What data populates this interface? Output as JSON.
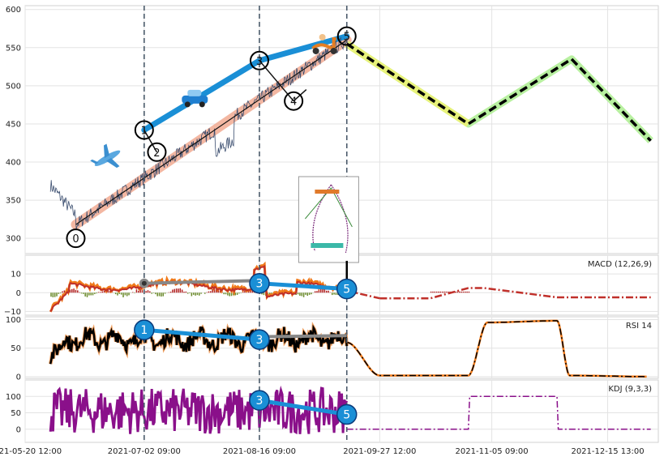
{
  "chart_data": [
    {
      "type": "line",
      "panel": "price",
      "ylim": [
        280,
        605
      ],
      "yticks": [
        "300",
        "350",
        "400",
        "450",
        "500",
        "550",
        "600"
      ],
      "ytick_values": [
        300,
        350,
        400,
        450,
        500,
        550,
        600
      ],
      "xlim": [
        0,
        1000
      ],
      "xtick_labels": [
        "2021-05-20 12:00",
        "2021-07-02 09:00",
        "2021-08-16 09:00",
        "2021-09-27 12:00",
        "2021-11-05 09:00",
        "2021-12-15 13:00"
      ],
      "xtick_positions": [
        0,
        188,
        370,
        560,
        737,
        920
      ],
      "vlines": [
        188,
        370,
        508
      ],
      "wave_points": [
        {
          "label": "0",
          "x": 80,
          "y": 300
        },
        {
          "label": "1",
          "x": 188,
          "y": 442
        },
        {
          "label": "2",
          "x": 208,
          "y": 413
        },
        {
          "label": "3",
          "x": 370,
          "y": 533
        },
        {
          "label": "4",
          "x": 424,
          "y": 480
        },
        {
          "label": "5",
          "x": 508,
          "y": 565
        }
      ],
      "trend_line": {
        "x": [
          80,
          508
        ],
        "y": [
          318,
          560
        ]
      },
      "forecast": {
        "x": [
          508,
          700,
          863,
          988
        ],
        "y": [
          555,
          450,
          535,
          428
        ]
      },
      "icons": [
        "airplane-icon",
        "car-icon",
        "scooter-icon"
      ],
      "grid": true
    },
    {
      "type": "line",
      "panel": "macd",
      "label": "MACD (12,26,9)",
      "ylim": [
        -12,
        20
      ],
      "yticks": [
        "10",
        "0",
        "−10"
      ],
      "ytick_values": [
        10,
        0,
        -10
      ],
      "markers": [
        {
          "label": "3",
          "x": 370,
          "y": 5
        },
        {
          "label": "5",
          "x": 508,
          "y": 2
        }
      ],
      "forecast": {
        "x": [
          560,
          640,
          700,
          725,
          840,
          988
        ],
        "y": [
          -3,
          -3,
          2.5,
          2.5,
          -2.5,
          -2.5
        ]
      }
    },
    {
      "type": "line",
      "panel": "rsi",
      "label": "RSI 14",
      "ylim": [
        -3,
        105
      ],
      "yticks": [
        "100",
        "50",
        "0"
      ],
      "ytick_values": [
        100,
        50,
        0
      ],
      "markers": [
        {
          "label": "1",
          "x": 188,
          "y": 82
        },
        {
          "label": "3",
          "x": 370,
          "y": 65
        }
      ],
      "forecast": {
        "x": [
          508,
          560,
          700,
          730,
          840,
          860,
          988
        ],
        "y": [
          60,
          2,
          2,
          95,
          98,
          2,
          0
        ]
      }
    },
    {
      "type": "line",
      "panel": "kdj",
      "label": "KDJ (9,3,3)",
      "ylim": [
        -40,
        150
      ],
      "yticks": [
        "100",
        "50",
        "0"
      ],
      "ytick_values": [
        100,
        50,
        0
      ],
      "markers": [
        {
          "label": "3",
          "x": 370,
          "y": 88
        },
        {
          "label": "5",
          "x": 508,
          "y": 45
        }
      ],
      "forecast": {
        "x": [
          508,
          700,
          702,
          840,
          842,
          988
        ],
        "y": [
          0,
          0,
          100,
          100,
          0,
          0
        ]
      }
    }
  ]
}
